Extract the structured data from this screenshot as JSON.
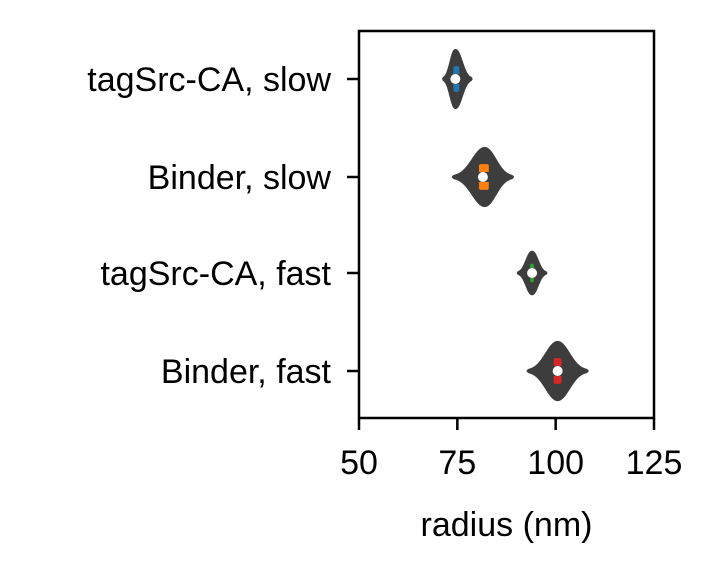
{
  "chart_data": {
    "type": "violin",
    "orientation": "horizontal",
    "title": "",
    "xlabel": "radius (nm)",
    "ylabel": "",
    "xlim": [
      50,
      125
    ],
    "xticks": [
      50,
      75,
      100,
      125
    ],
    "categories": [
      "tagSrc-CA, slow",
      "Binder, slow",
      "tagSrc-CA, fast",
      "Binder, fast"
    ],
    "series": [
      {
        "category": "tagSrc-CA, slow",
        "color": "#1f77b4",
        "min": 71.5,
        "q1": 74.0,
        "median": 74.5,
        "q3": 75.5,
        "max": 78.5,
        "widest_at": 74.5,
        "relative_width": 0.55
      },
      {
        "category": "Binder, slow",
        "color": "#ff7f0e",
        "min": 74.0,
        "q1": 80.5,
        "median": 81.5,
        "q3": 83.0,
        "max": 89.0,
        "widest_at": 82.0,
        "relative_width": 0.55
      },
      {
        "category": "tagSrc-CA, fast",
        "color": "#2ca02c",
        "min": 90.5,
        "q1": 93.5,
        "median": 94.0,
        "q3": 94.5,
        "max": 97.5,
        "widest_at": 94.0,
        "relative_width": 0.4
      },
      {
        "category": "Binder, fast",
        "color": "#d62728",
        "min": 93.0,
        "q1": 99.5,
        "median": 100.5,
        "q3": 101.5,
        "max": 108.0,
        "widest_at": 100.5,
        "relative_width": 0.55
      }
    ],
    "grid": false,
    "legend": "none"
  }
}
